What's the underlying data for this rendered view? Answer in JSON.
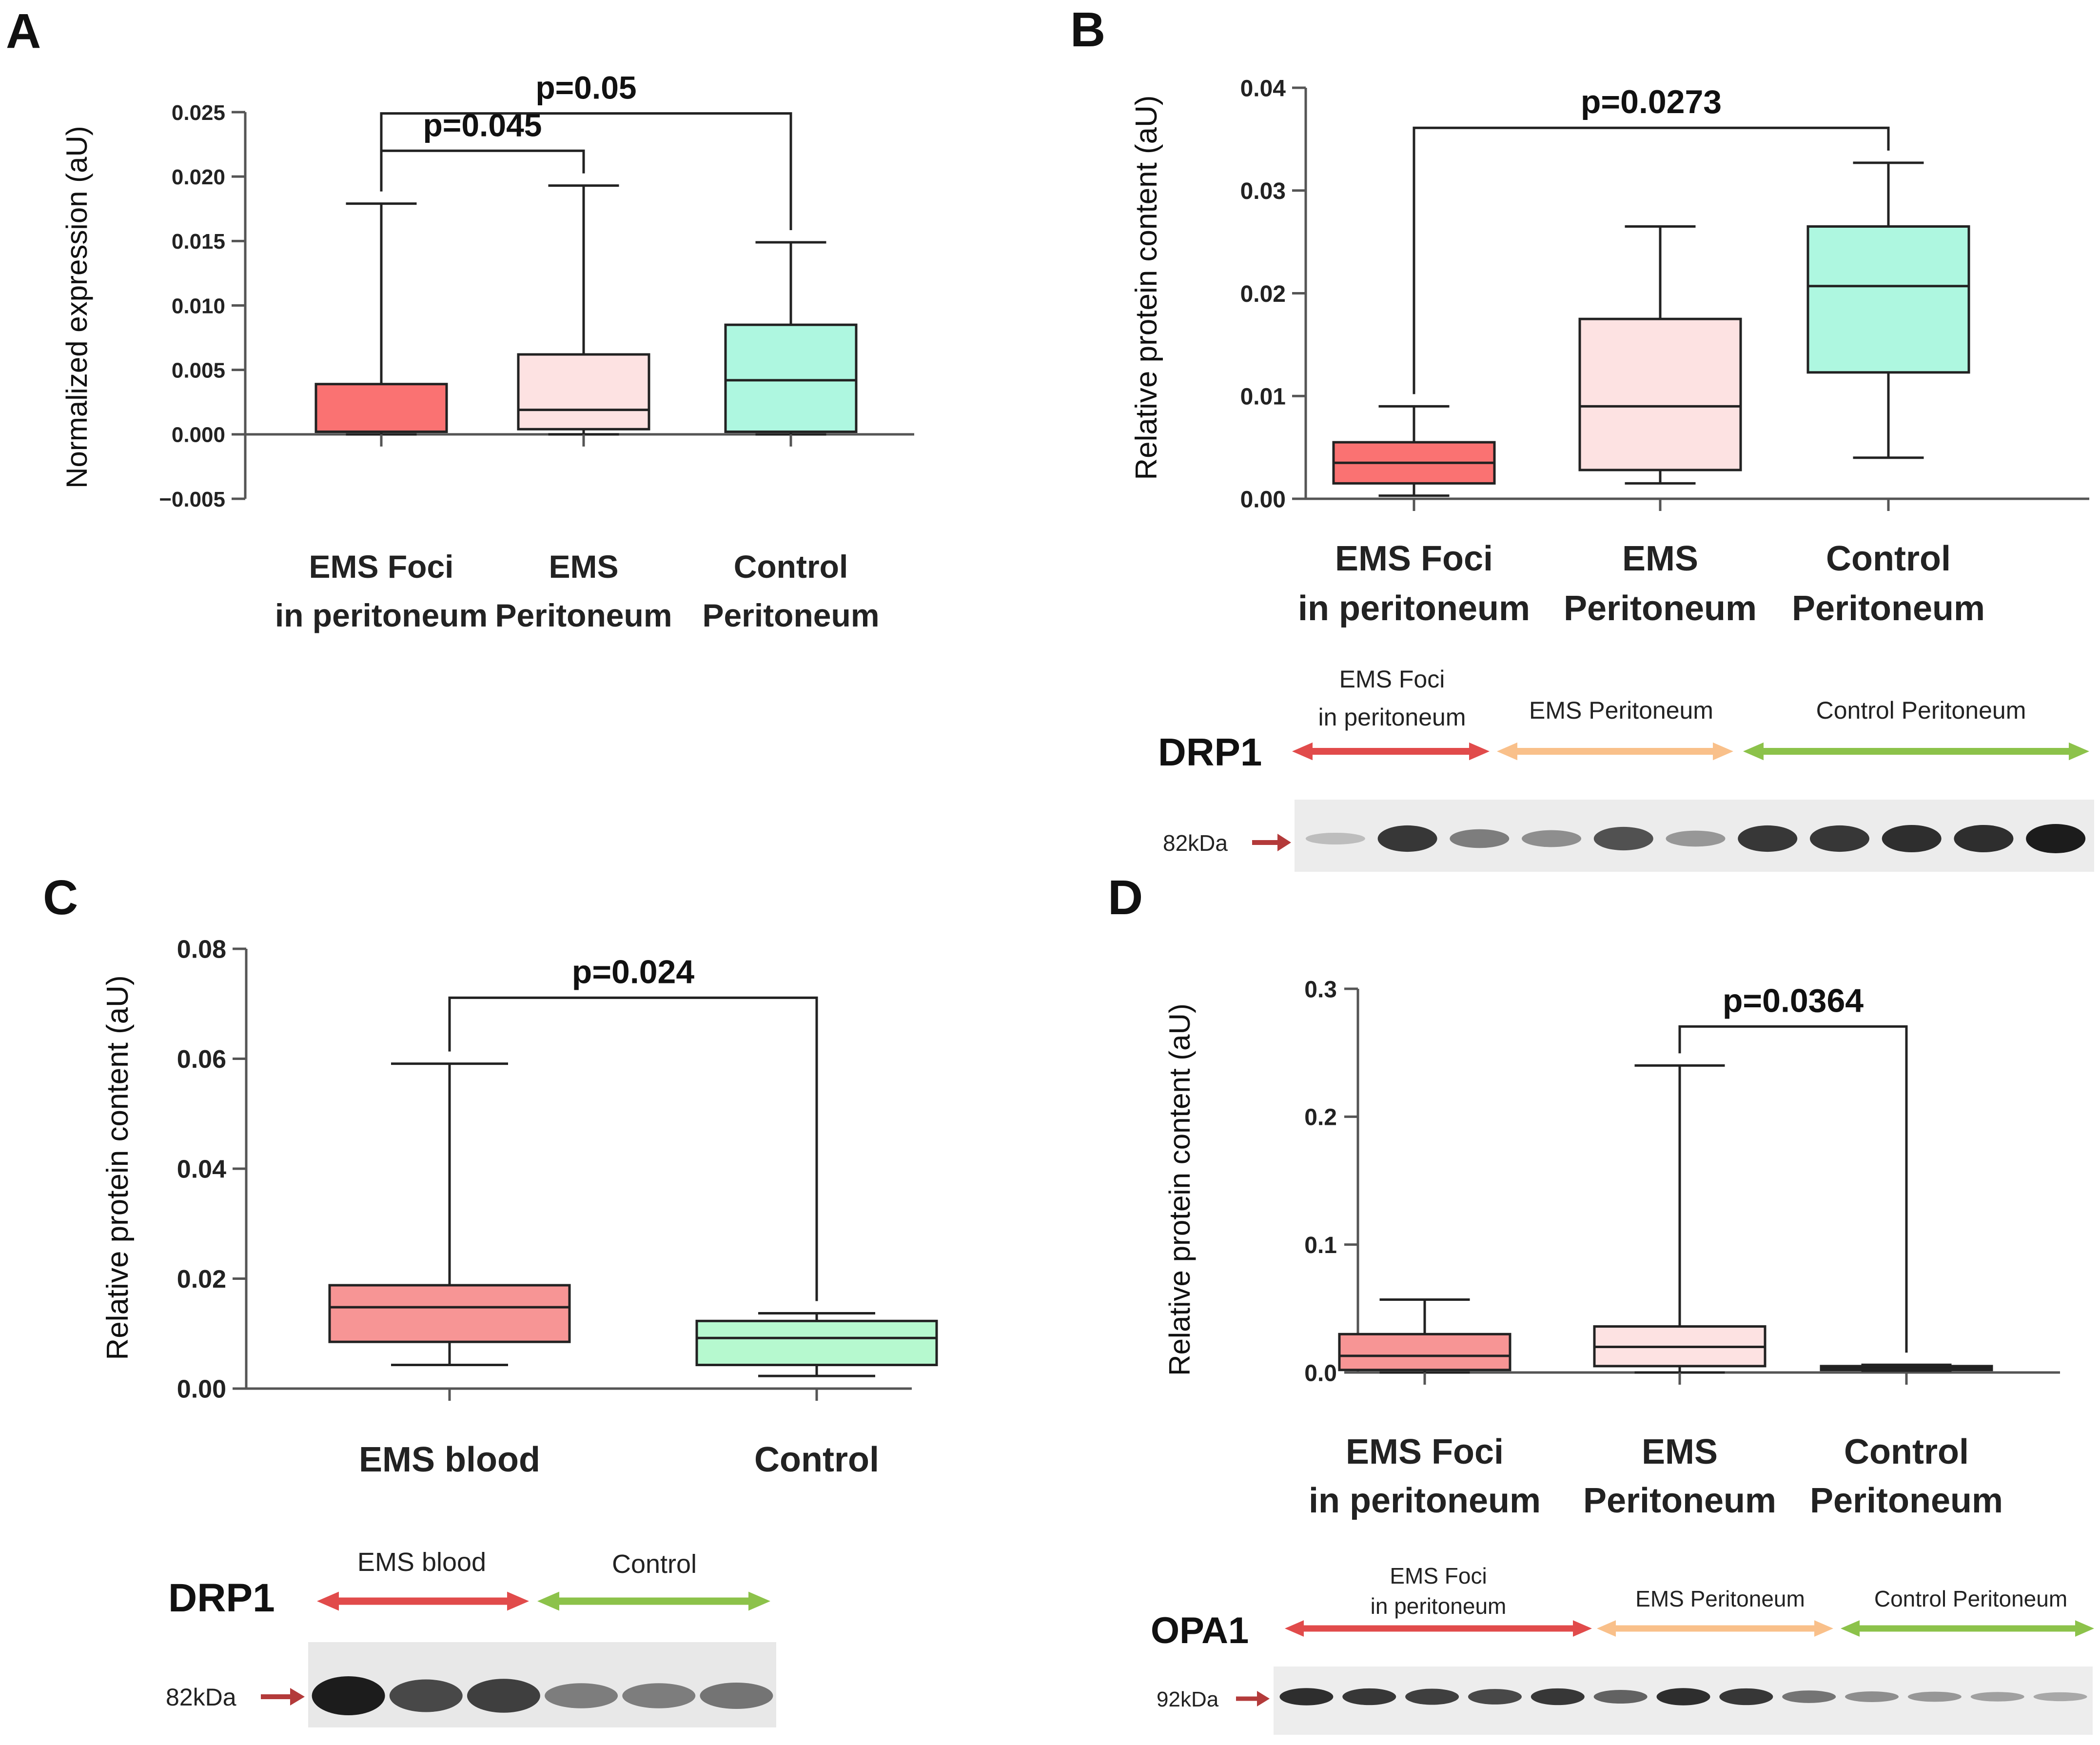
{
  "colors": {
    "foci": "#fa7272",
    "foci_d": "#f79595",
    "ems": "#fde2e2",
    "control": "#aef7e0",
    "control_c": "#b6f9cf",
    "control_d": "#111111",
    "axis": "#555555",
    "arrow_red": "#e14b4b",
    "arrow_orange": "#f9c08a",
    "arrow_green": "#8cc24a",
    "marker": "#b33a3a"
  },
  "chart_data": [
    {
      "panel": "A",
      "type": "box",
      "ylabel": "Normalized expression (aU)",
      "ylim": [
        -0.005,
        0.025
      ],
      "yticks": [
        -0.005,
        0.0,
        0.005,
        0.01,
        0.015,
        0.02,
        0.025
      ],
      "ytick_labels": [
        "−0.005",
        "0.000",
        "0.005",
        "0.010",
        "0.015",
        "0.020",
        "0.025"
      ],
      "categories": [
        {
          "line1": "EMS Foci",
          "line2": "in peritoneum",
          "color": "foci",
          "min": 0.0,
          "q1": 0.0002,
          "median": 0.0002,
          "q3": 0.0039,
          "max": 0.0179
        },
        {
          "line1": "EMS",
          "line2": "Peritoneum",
          "color": "ems",
          "min": 0.0,
          "q1": 0.0004,
          "median": 0.0019,
          "q3": 0.0062,
          "max": 0.0193
        },
        {
          "line1": "Control",
          "line2": "Peritoneum",
          "color": "control",
          "min": 0.0,
          "q1": 0.0002,
          "median": 0.0042,
          "q3": 0.0085,
          "max": 0.0149
        }
      ],
      "brackets": [
        {
          "from": 0,
          "to": 2,
          "label": "p=0.05",
          "level": 0.0249
        },
        {
          "from": 0,
          "to": 1,
          "label": "p=0.045",
          "level": 0.022
        }
      ]
    },
    {
      "panel": "B",
      "type": "box",
      "ylabel": "Relative protein content (aU)",
      "ylim": [
        0,
        0.04
      ],
      "yticks": [
        0,
        0.01,
        0.02,
        0.03,
        0.04
      ],
      "ytick_labels": [
        "0.00",
        "0.01",
        "0.02",
        "0.03",
        "0.04"
      ],
      "categories": [
        {
          "line1": "EMS Foci",
          "line2": "in peritoneum",
          "color": "foci",
          "min": 0.0003,
          "q1": 0.0015,
          "median": 0.0035,
          "q3": 0.0055,
          "max": 0.009
        },
        {
          "line1": "EMS",
          "line2": "Peritoneum",
          "color": "ems",
          "min": 0.0015,
          "q1": 0.0028,
          "median": 0.009,
          "q3": 0.0175,
          "max": 0.0265
        },
        {
          "line1": "Control",
          "line2": "Peritoneum",
          "color": "control",
          "min": 0.004,
          "q1": 0.0123,
          "median": 0.0207,
          "q3": 0.0265,
          "max": 0.0327
        }
      ],
      "brackets": [
        {
          "from": 0,
          "to": 2,
          "label": "p=0.0273",
          "level": 0.0361
        }
      ]
    },
    {
      "panel": "C",
      "type": "box",
      "ylabel": "Relative protein content (aU)",
      "ylim": [
        0,
        0.08
      ],
      "yticks": [
        0,
        0.02,
        0.04,
        0.06,
        0.08
      ],
      "ytick_labels": [
        "0.00",
        "0.02",
        "0.04",
        "0.06",
        "0.08"
      ],
      "categories": [
        {
          "line1": "EMS blood",
          "line2": "",
          "color": "foci_d",
          "min": 0.0043,
          "q1": 0.0085,
          "median": 0.0148,
          "q3": 0.0188,
          "max": 0.0591
        },
        {
          "line1": "Control",
          "line2": "",
          "color": "control_c",
          "min": 0.0023,
          "q1": 0.0043,
          "median": 0.0092,
          "q3": 0.0123,
          "max": 0.0137
        }
      ],
      "brackets": [
        {
          "from": 0,
          "to": 1,
          "label": "p=0.024",
          "level": 0.0711
        }
      ]
    },
    {
      "panel": "D",
      "type": "box",
      "ylabel": "Relative protein content (aU)",
      "ylim": [
        0,
        0.3
      ],
      "yticks": [
        0,
        0.1,
        0.2,
        0.3
      ],
      "ytick_labels": [
        "0.0",
        "0.1",
        "0.2",
        "0.3"
      ],
      "categories": [
        {
          "line1": "EMS Foci",
          "line2": "in peritoneum",
          "color": "foci_d",
          "min": 0.0,
          "q1": 0.002,
          "median": 0.013,
          "q3": 0.03,
          "max": 0.057
        },
        {
          "line1": "EMS",
          "line2": "Peritoneum",
          "color": "ems",
          "min": 0.0,
          "q1": 0.005,
          "median": 0.02,
          "q3": 0.036,
          "max": 0.24
        },
        {
          "line1": "Control",
          "line2": "Peritoneum",
          "color": "control_d",
          "min": 0.0015,
          "q1": 0.002,
          "median": 0.003,
          "q3": 0.005,
          "max": 0.006
        }
      ],
      "brackets": [
        {
          "from": 1,
          "to": 2,
          "label": "p=0.0364",
          "level": 0.2705
        }
      ]
    }
  ],
  "blots": {
    "b": {
      "title": "DRP1",
      "size": "82kDa",
      "groups": [
        "EMS Foci",
        "in peritoneum",
        "EMS Peritoneum",
        "Control Peritoneum"
      ],
      "bands": [
        0.08,
        0.85,
        0.45,
        0.35,
        0.7,
        0.3,
        0.85,
        0.85,
        0.9,
        0.9,
        1.0
      ]
    },
    "c": {
      "title": "DRP1",
      "size": "82kDa",
      "groups": [
        "EMS blood",
        "Control"
      ],
      "bands": [
        1.0,
        0.75,
        0.8,
        0.45,
        0.45,
        0.5
      ]
    },
    "d": {
      "title": "OPA1",
      "size": "92kDa",
      "groups": [
        "EMS Foci",
        "in peritoneum",
        "EMS Peritoneum",
        "Control Peritoneum"
      ],
      "bands": [
        0.9,
        0.85,
        0.8,
        0.75,
        0.85,
        0.6,
        0.9,
        0.85,
        0.5,
        0.35,
        0.3,
        0.25,
        0.2
      ]
    }
  }
}
